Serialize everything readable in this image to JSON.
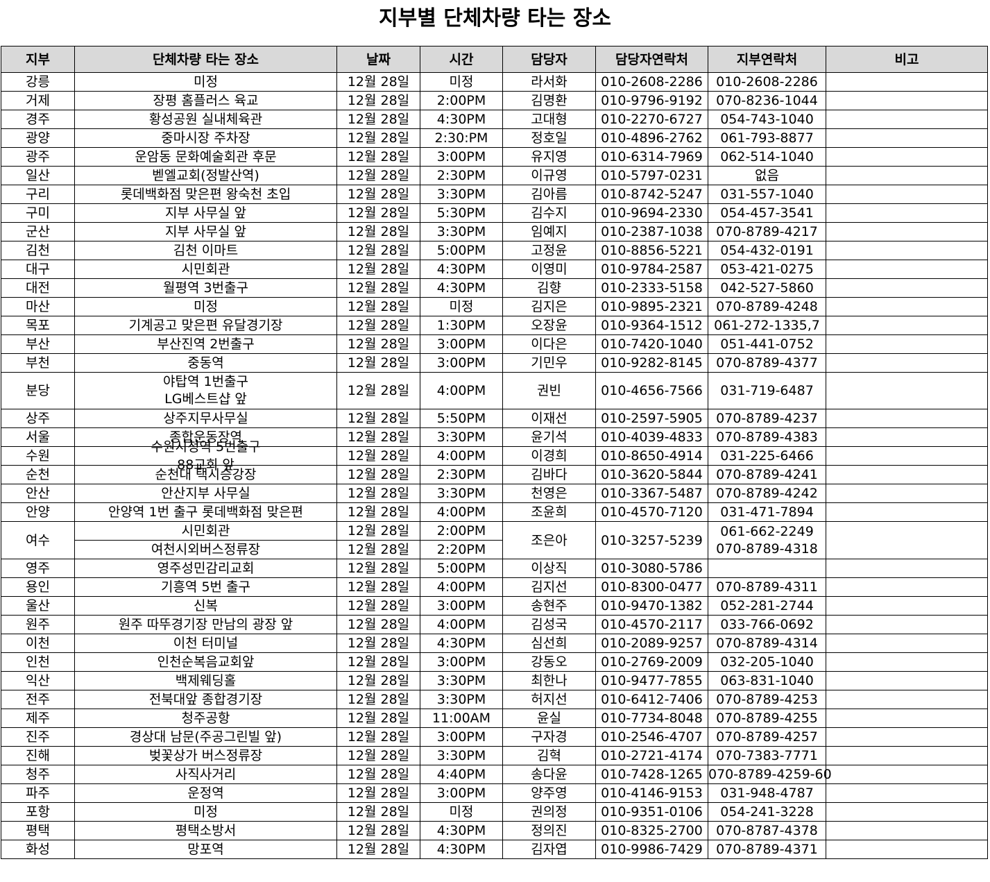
{
  "title": "지부별 단체차량 타는 장소",
  "headers": [
    "지부",
    "단체차량 타는 장소",
    "날짜",
    "시간",
    "담당자",
    "담당자연락처",
    "지부연락처",
    "비고"
  ],
  "rows": [
    {
      "branch": "강릉",
      "place": "미정",
      "date": "12월 28일",
      "time": "미정",
      "manager": "라서화",
      "manager_phone": "010-2608-2286",
      "branch_phone": "010-2608-2286",
      "note": ""
    },
    {
      "branch": "거제",
      "place": "장평 홈플러스 육교",
      "date": "12월 28일",
      "time": "2:00PM",
      "manager": "김명환",
      "manager_phone": "010-9796-9192",
      "branch_phone": "070-8236-1044",
      "note": ""
    },
    {
      "branch": "경주",
      "place": "황성공원 실내체육관",
      "date": "12월 28일",
      "time": "4:30PM",
      "manager": "고대형",
      "manager_phone": "010-2270-6727",
      "branch_phone": "054-743-1040",
      "note": ""
    },
    {
      "branch": "광양",
      "place": "중마시장 주차장",
      "date": "12월 28일",
      "time": "2:30:PM",
      "manager": "정호일",
      "manager_phone": "010-4896-2762",
      "branch_phone": "061-793-8877",
      "note": ""
    },
    {
      "branch": "광주",
      "place": "운암동 문화예술회관 후문",
      "date": "12월 28일",
      "time": "3:00PM",
      "manager": "유지영",
      "manager_phone": "010-6314-7969",
      "branch_phone": "062-514-1040",
      "note": ""
    },
    {
      "branch": "일산",
      "place": "벧엘교회(정발산역)",
      "date": "12월 28일",
      "time": "2:30PM",
      "manager": "이규영",
      "manager_phone": "010-5797-0231",
      "branch_phone": "없음",
      "note": ""
    },
    {
      "branch": "구리",
      "place": "롯데백화점 맞은편 왕숙천 초입",
      "date": "12월 28일",
      "time": "3:30PM",
      "manager": "김아름",
      "manager_phone": "010-8742-5247",
      "branch_phone": "031-557-1040",
      "note": ""
    },
    {
      "branch": "구미",
      "place": "지부 사무실 앞",
      "date": "12월 28일",
      "time": "5:30PM",
      "manager": "김수지",
      "manager_phone": "010-9694-2330",
      "branch_phone": "054-457-3541",
      "note": ""
    },
    {
      "branch": "군산",
      "place": "지부 사무실 앞",
      "date": "12월 28일",
      "time": "3:30PM",
      "manager": "임예지",
      "manager_phone": "010-2387-1038",
      "branch_phone": "070-8789-4217",
      "note": ""
    },
    {
      "branch": "김천",
      "place": "김천 이마트",
      "date": "12월 28일",
      "time": "5:00PM",
      "manager": "고정윤",
      "manager_phone": "010-8856-5221",
      "branch_phone": "054-432-0191",
      "note": ""
    },
    {
      "branch": "대구",
      "place": "시민회관",
      "date": "12월 28일",
      "time": "4:30PM",
      "manager": "이영미",
      "manager_phone": "010-9784-2587",
      "branch_phone": "053-421-0275",
      "note": ""
    },
    {
      "branch": "대전",
      "place": "월평역 3번출구",
      "date": "12월 28일",
      "time": "4:30PM",
      "manager": "김향",
      "manager_phone": "010-2333-5158",
      "branch_phone": "042-527-5860",
      "note": ""
    },
    {
      "branch": "마산",
      "place": "미정",
      "date": "12월 28일",
      "time": "미정",
      "manager": "김지은",
      "manager_phone": "010-9895-2321",
      "branch_phone": "070-8789-4248",
      "note": ""
    },
    {
      "branch": "목포",
      "place": "기계공고 맞은편 유달경기장",
      "date": "12월 28일",
      "time": "1:30PM",
      "manager": "오장윤",
      "manager_phone": "010-9364-1512",
      "branch_phone": "061-272-1335,7",
      "note": ""
    },
    {
      "branch": "부산",
      "place": "부산진역 2번출구",
      "date": "12월 28일",
      "time": "3:00PM",
      "manager": "이다은",
      "manager_phone": "010-7420-1040",
      "branch_phone": "051-441-0752",
      "note": ""
    },
    {
      "branch": "부천",
      "place": "중동역",
      "date": "12월 28일",
      "time": "3:00PM",
      "manager": "기민우",
      "manager_phone": "010-9282-8145",
      "branch_phone": "070-8789-4377",
      "note": ""
    },
    {
      "branch": "분당",
      "place_line1": "야탑역 1번출구",
      "place_line2": "LG베스트샵 앞",
      "date": "12월 28일",
      "time": "4:00PM",
      "manager": "권빈",
      "manager_phone": "010-4656-7566",
      "branch_phone": "031-719-6487",
      "note": ""
    },
    {
      "branch": "상주",
      "place": "상주지무사무실",
      "date": "12월 28일",
      "time": "5:50PM",
      "manager": "이재선",
      "manager_phone": "010-2597-5905",
      "branch_phone": "070-8789-4237",
      "note": ""
    },
    {
      "branch": "서울",
      "place": "종합운동장역",
      "date": "12월 28일",
      "time": "3:30PM",
      "manager": "윤기석",
      "manager_phone": "010-4039-4833",
      "branch_phone": "070-8789-4383",
      "note": ""
    },
    {
      "branch": "수원",
      "place_line1": "수원시청역 5번출구",
      "place_line2": "88교회 앞",
      "date": "12월 28일",
      "time": "4:00PM",
      "manager": "이경희",
      "manager_phone": "010-8650-4914",
      "branch_phone": "031-225-6466",
      "note": ""
    },
    {
      "branch": "순천",
      "place": "순천대 택시승강장",
      "date": "12월 28일",
      "time": "2:30PM",
      "manager": "김바다",
      "manager_phone": "010-3620-5844",
      "branch_phone": "070-8789-4241",
      "note": ""
    },
    {
      "branch": "안산",
      "place": "안산지부 사무실",
      "date": "12월 28일",
      "time": "3:30PM",
      "manager": "천영은",
      "manager_phone": "010-3367-5487",
      "branch_phone": "070-8789-4242",
      "note": ""
    },
    {
      "branch": "안양",
      "place": "안양역 1번 출구 롯데백화점 맞은편",
      "date": "12월 28일",
      "time": "4:00PM",
      "manager": "조윤희",
      "manager_phone": "010-4570-7120",
      "branch_phone": "031-471-7894",
      "note": ""
    },
    {
      "branch": "여수",
      "place_a": "시민회관",
      "date_a": "12월 28일",
      "time_a": "2:00PM",
      "place_b": "여천시외버스정류장",
      "date_b": "12월 28일",
      "time_b": "2:20PM",
      "manager": "조은아",
      "manager_phone": "010-3257-5239",
      "branch_phone_line1": "061-662-2249",
      "branch_phone_line2": "070-8789-4318",
      "note": ""
    },
    {
      "branch": "영주",
      "place": "영주성민감리교회",
      "date": "12월 28일",
      "time": "5:00PM",
      "manager": "이상직",
      "manager_phone": "010-3080-5786",
      "branch_phone": "",
      "note": ""
    },
    {
      "branch": "용인",
      "place": "기흥역 5번 출구",
      "date": "12월 28일",
      "time": "4:00PM",
      "manager": "김지선",
      "manager_phone": "010-8300-0477",
      "branch_phone": "070-8789-4311",
      "note": ""
    },
    {
      "branch": "울산",
      "place": "신복",
      "date": "12월 28일",
      "time": "3:00PM",
      "manager": "송현주",
      "manager_phone": "010-9470-1382",
      "branch_phone": "052-281-2744",
      "note": ""
    },
    {
      "branch": "원주",
      "place": "원주 따뚜경기장 만남의 광장 앞",
      "date": "12월 28일",
      "time": "4:00PM",
      "manager": "김성국",
      "manager_phone": "010-4570-2117",
      "branch_phone": "033-766-0692",
      "note": ""
    },
    {
      "branch": "이천",
      "place": "이천 터미널",
      "date": "12월 28일",
      "time": "4:30PM",
      "manager": "심선희",
      "manager_phone": "010-2089-9257",
      "branch_phone": "070-8789-4314",
      "note": ""
    },
    {
      "branch": "인천",
      "place": "인천순복음교회앞",
      "date": "12월 28일",
      "time": "3:00PM",
      "manager": "강동오",
      "manager_phone": "010-2769-2009",
      "branch_phone": "032-205-1040",
      "note": ""
    },
    {
      "branch": "익산",
      "place": "백제웨딩홀",
      "date": "12월 28일",
      "time": "3:30PM",
      "manager": "최한나",
      "manager_phone": "010-9477-7855",
      "branch_phone": "063-831-1040",
      "note": ""
    },
    {
      "branch": "전주",
      "place": "전북대앞 종합경기장",
      "date": "12월 28일",
      "time": "3:30PM",
      "manager": "허지선",
      "manager_phone": "010-6412-7406",
      "branch_phone": "070-8789-4253",
      "note": ""
    },
    {
      "branch": "제주",
      "place": "청주공항",
      "date": "12월 28일",
      "time": "11:00AM",
      "manager": "윤실",
      "manager_phone": "010-7734-8048",
      "branch_phone": "070-8789-4255",
      "note": ""
    },
    {
      "branch": "진주",
      "place": "경상대 남문(주공그린빌 앞)",
      "date": "12월 28일",
      "time": "3:00PM",
      "manager": "구자경",
      "manager_phone": "010-2546-4707",
      "branch_phone": "070-8789-4257",
      "note": ""
    },
    {
      "branch": "진해",
      "place": "벚꽃상가 버스정류장",
      "date": "12월 28일",
      "time": "3:30PM",
      "manager": "김혁",
      "manager_phone": "010-2721-4174",
      "branch_phone": "070-7383-7771",
      "note": ""
    },
    {
      "branch": "청주",
      "place": "사직사거리",
      "date": "12월 28일",
      "time": "4:40PM",
      "manager": "송다윤",
      "manager_phone": "010-7428-1265",
      "branch_phone": "070-8789-4259-60",
      "note": ""
    },
    {
      "branch": "파주",
      "place": "운정역",
      "date": "12월 28일",
      "time": "3:00PM",
      "manager": "양주영",
      "manager_phone": "010-4146-9153",
      "branch_phone": "031-948-4787",
      "note": ""
    },
    {
      "branch": "포항",
      "place": "미정",
      "date": "12월 28일",
      "time": "미정",
      "manager": "권의정",
      "manager_phone": "010-9351-0106",
      "branch_phone": "054-241-3228",
      "note": ""
    },
    {
      "branch": "평택",
      "place": "평택소방서",
      "date": "12월 28일",
      "time": "4:30PM",
      "manager": "정의진",
      "manager_phone": "010-8325-2700",
      "branch_phone": "070-8787-4378",
      "note": ""
    },
    {
      "branch": "화성",
      "place": "망포역",
      "date": "12월 28일",
      "time": "4:30PM",
      "manager": "김자엽",
      "manager_phone": "010-9986-7429",
      "branch_phone": "070-8789-4371",
      "note": ""
    }
  ]
}
